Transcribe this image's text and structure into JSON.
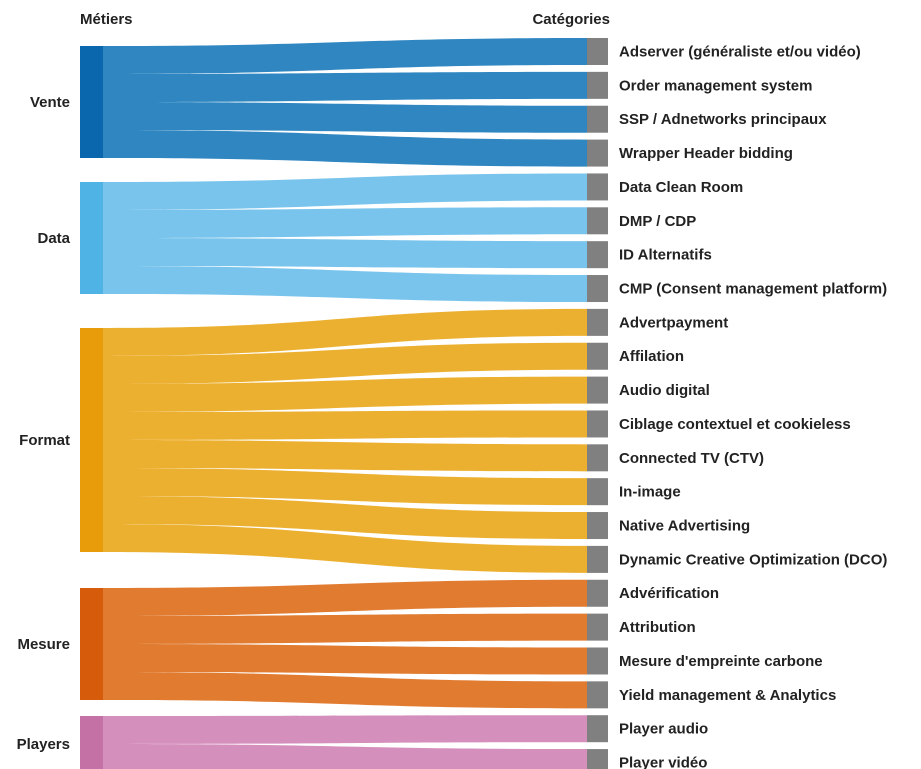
{
  "header": {
    "left": "Métiers",
    "right": "Catégories"
  },
  "sources": [
    {
      "name": "Vente",
      "color": "#0a67ad",
      "link_color": "#2f86c1",
      "targets": [
        "Adserver (généraliste et/ou vidéo)",
        "Order management system",
        "SSP / Adnetworks principaux",
        "Wrapper Header bidding"
      ]
    },
    {
      "name": "Data",
      "color": "#4fb3e6",
      "link_color": "#79c4ec",
      "targets": [
        "Data Clean Room",
        "DMP / CDP",
        "ID Alternatifs",
        "CMP (Consent management platform)"
      ]
    },
    {
      "name": "Format",
      "color": "#e89c0a",
      "link_color": "#ecb030",
      "targets": [
        "Advertpayment",
        "Affilation",
        "Audio digital",
        "Ciblage contextuel et cookieless",
        "Connected TV (CTV)",
        "In-image",
        "Native Advertising",
        "Dynamic Creative Optimization (DCO)"
      ]
    },
    {
      "name": "Mesure",
      "color": "#d65c0c",
      "link_color": "#e07b30",
      "targets": [
        "Advérification",
        "Attribution",
        "Mesure d'empreinte carbone",
        "Yield management & Analytics"
      ]
    },
    {
      "name": "Players",
      "color": "#c472a6",
      "link_color": "#d58fbc",
      "targets": [
        "Player audio",
        "Player vidéo"
      ]
    }
  ]
}
